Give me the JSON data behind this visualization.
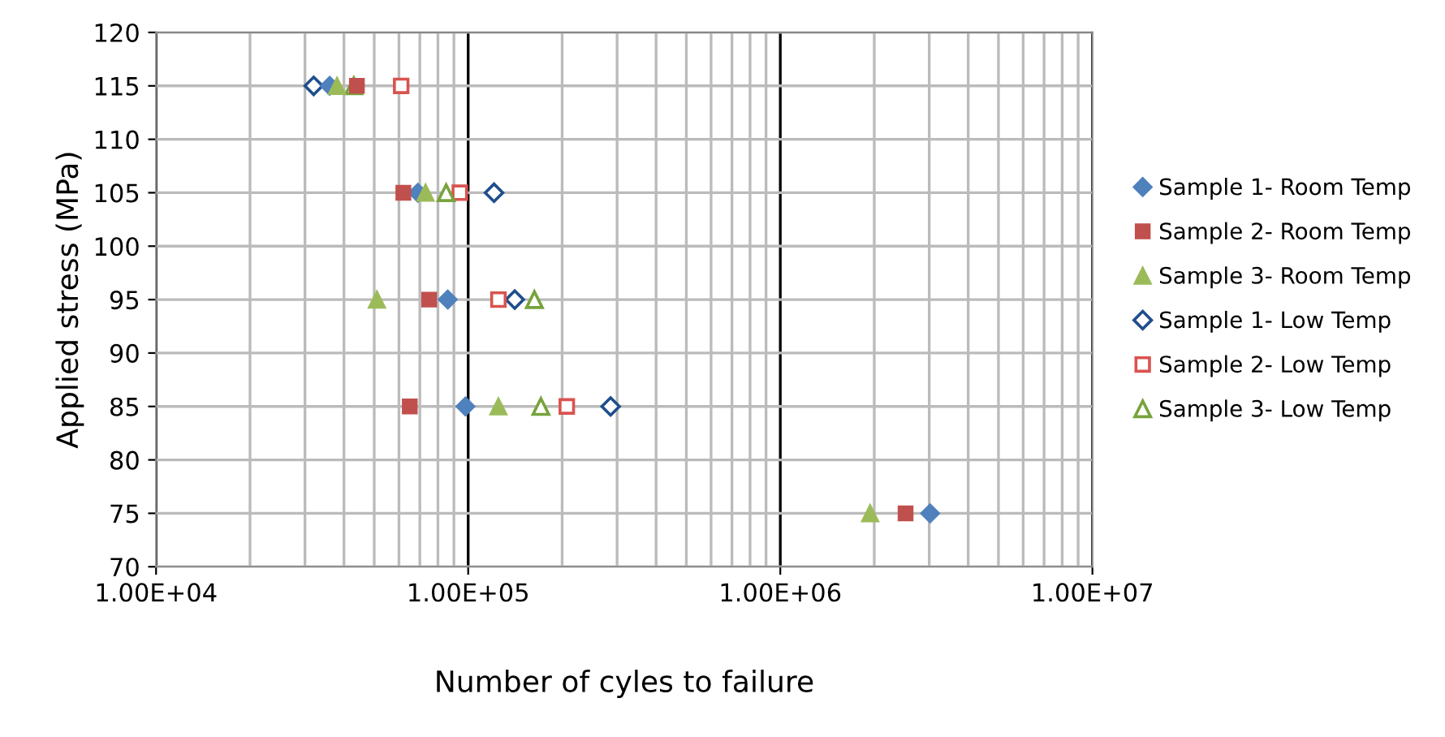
{
  "chart_data": {
    "type": "scatter",
    "xlabel": "Number of cyles to failure",
    "ylabel": "Applied stress (MPa)",
    "log": "x",
    "xlim": [
      10000,
      10000000
    ],
    "xticks": [
      {
        "value": 10000,
        "label": "1.00E+04"
      },
      {
        "value": 100000,
        "label": "1.00E+05"
      },
      {
        "value": 1000000,
        "label": "1.00E+06"
      },
      {
        "value": 10000000,
        "label": "1.00E+07"
      }
    ],
    "ylim": [
      70,
      120
    ],
    "yticks": [
      70,
      75,
      80,
      85,
      90,
      95,
      100,
      105,
      110,
      115,
      120
    ],
    "grid": true,
    "legend": "right",
    "series": [
      {
        "name": "Sample 1- Room Temp",
        "color": "#4f81bd",
        "marker": "diamond",
        "x": [
          36000,
          69000,
          86000,
          98000,
          3020000
        ],
        "values": [
          115,
          105,
          95,
          85,
          75
        ]
      },
      {
        "name": "Sample 2- Room Temp",
        "color": "#c0504d",
        "marker": "square",
        "x": [
          44000,
          62000,
          75000,
          65000,
          2520000
        ],
        "values": [
          115,
          105,
          95,
          85,
          75
        ]
      },
      {
        "name": "Sample 3- Room Temp",
        "color": "#9bbb59",
        "marker": "triangle",
        "x": [
          38000,
          73000,
          51000,
          125000,
          1940000
        ],
        "values": [
          115,
          105,
          95,
          85,
          75
        ]
      },
      {
        "name": "Sample 1- Low Temp",
        "color": "#1f4e8c",
        "marker": "diamond",
        "x": [
          32000,
          121000,
          141000,
          286000
        ],
        "values": [
          115,
          105,
          95,
          85
        ]
      },
      {
        "name": "Sample 2- Low Temp",
        "color": "#d9534f",
        "marker": "square",
        "x": [
          61000,
          94000,
          125000,
          207000
        ],
        "values": [
          115,
          105,
          95,
          85
        ]
      },
      {
        "name": "Sample 3- Low Temp",
        "color": "#77a33c",
        "marker": "triangle",
        "x": [
          43000,
          85000,
          163000,
          171000
        ],
        "values": [
          115,
          105,
          95,
          85
        ]
      }
    ]
  }
}
